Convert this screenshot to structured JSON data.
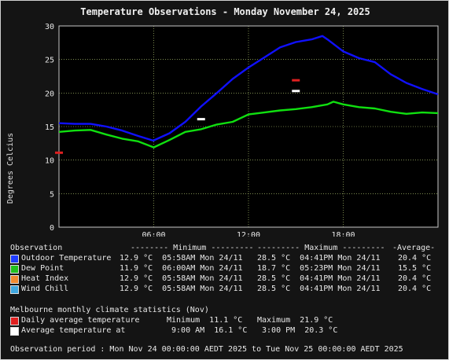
{
  "title": "Temperature Observations - Monday November 24, 2025",
  "chart_data": {
    "type": "line",
    "ylabel": "Degrees Celcius",
    "xlabel": "",
    "ylim": [
      0,
      30
    ],
    "xlim": [
      0,
      24
    ],
    "yticks": [
      0,
      5,
      10,
      15,
      20,
      25,
      30
    ],
    "xticks": [
      6,
      12,
      18
    ],
    "xtick_labels": [
      "06:00",
      "12:00",
      "18:00"
    ],
    "grid": true,
    "series": [
      {
        "name": "Outdoor Temperature",
        "color": "#1010ff",
        "x": [
          0,
          1,
          2,
          3,
          4,
          5,
          5.97,
          7,
          8,
          9,
          10,
          11,
          12,
          13,
          14,
          15,
          16,
          16.68,
          17,
          18,
          19,
          20,
          21,
          22,
          23,
          24
        ],
        "y": [
          15.5,
          15.4,
          15.4,
          15.0,
          14.4,
          13.6,
          12.9,
          14.0,
          15.7,
          18.0,
          20.0,
          22.1,
          23.8,
          25.3,
          26.8,
          27.6,
          28.0,
          28.5,
          28.0,
          26.2,
          25.2,
          24.6,
          22.8,
          21.5,
          20.6,
          19.8
        ]
      },
      {
        "name": "Dew Point",
        "color": "#10e010",
        "x": [
          0,
          1,
          2,
          3,
          4,
          5,
          6,
          7,
          8,
          9,
          10,
          11,
          12,
          13,
          14,
          15,
          16,
          17,
          17.38,
          18,
          19,
          20,
          21,
          22,
          23,
          24
        ],
        "y": [
          14.2,
          14.4,
          14.5,
          13.8,
          13.2,
          12.8,
          11.9,
          13.0,
          14.2,
          14.6,
          15.3,
          15.7,
          16.8,
          17.1,
          17.4,
          17.6,
          17.9,
          18.3,
          18.7,
          18.3,
          17.9,
          17.7,
          17.2,
          16.9,
          17.1,
          17.0
        ]
      }
    ],
    "markers": [
      {
        "name": "Daily average temperature minimum",
        "x": 0,
        "y": 11.1,
        "color": "#e02020"
      },
      {
        "name": "Daily average temperature maximum",
        "x": 15,
        "y": 21.9,
        "color": "#e02020"
      },
      {
        "name": "Average temperature minimum",
        "x": 9,
        "y": 16.1,
        "color": "#ffffff"
      },
      {
        "name": "Average temperature maximum",
        "x": 15,
        "y": 20.3,
        "color": "#ffffff"
      }
    ]
  },
  "legend": {
    "header": {
      "observation": "Observation",
      "minimum": "-------- Minimum ---------",
      "maximum": "--------- Maximum ---------",
      "average": "-Average-"
    },
    "rows": [
      {
        "label": "Outdoor Temperature",
        "color": "#1e3cff",
        "min": "12.9 °C  05:58AM Mon 24/11",
        "max": "28.5 °C  04:41PM Mon 24/11",
        "avg": "20.4 °C"
      },
      {
        "label": "Dew Point",
        "color": "#20c020",
        "min": "11.9 °C  06:00AM Mon 24/11",
        "max": "18.7 °C  05:23PM Mon 24/11",
        "avg": "15.5 °C"
      },
      {
        "label": "Heat Index",
        "color": "#f08a30",
        "min": "12.9 °C  05:58AM Mon 24/11",
        "max": "28.5 °C  04:41PM Mon 24/11",
        "avg": "20.4 °C"
      },
      {
        "label": "Wind Chill",
        "color": "#40a8e0",
        "min": "12.9 °C  05:58AM Mon 24/11",
        "max": "28.5 °C  04:41PM Mon 24/11",
        "avg": "20.4 °C"
      }
    ]
  },
  "climate": {
    "heading": "Melbourne monthly climate statistics (Nov)",
    "rows": [
      {
        "label": "Daily average temperature",
        "color": "#e02020",
        "min": "Minimum  11.1 °C",
        "max": "Maximum  21.9 °C"
      },
      {
        "label": "Average temperature at",
        "color": "#ffffff",
        "min": " 9:00 AM  16.1 °C",
        "max": " 3:00 PM  20.3 °C"
      }
    ]
  },
  "footer": "Observation period : Mon Nov 24 00:00:00 AEDT 2025 to Tue Nov 25 00:00:00 AEDT 2025"
}
